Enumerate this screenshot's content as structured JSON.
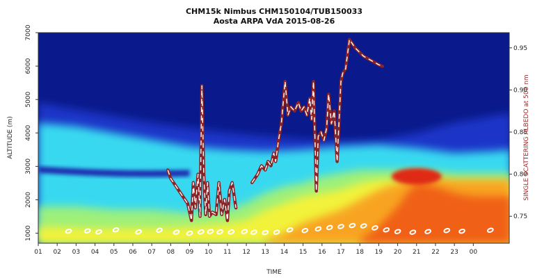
{
  "chart_data": {
    "type": "heatmap",
    "title": "CHM15k Nimbus CHM150104/TUB150033",
    "subtitle": "Aosta ARPA VdA 2015-08-26",
    "xlabel": "TIME",
    "ylabel": "ALTITUDE (m)",
    "y2label": "SINGLE SCATTERING ALBEDO at 500 nm",
    "x_ticks": [
      "01",
      "02",
      "03",
      "04",
      "05",
      "06",
      "07",
      "08",
      "09",
      "10",
      "11",
      "12",
      "13",
      "14",
      "15",
      "16",
      "17",
      "18",
      "19",
      "20",
      "21",
      "22",
      "23",
      "00"
    ],
    "y_ticks": [
      1000,
      2000,
      3000,
      4000,
      5000,
      6000,
      7000
    ],
    "y2_ticks": [
      0.75,
      0.8,
      0.85,
      0.9,
      0.95
    ],
    "xlim": [
      0.0,
      24.9
    ],
    "ylim": [
      700,
      7000
    ],
    "y2lim": [
      0.718,
      0.968
    ],
    "colors": {
      "background_high": "#0a1a8c",
      "low_signal": "#1b36c8",
      "aerosol_layer": "#38d9f0",
      "boundary_layer": "#f2f23a",
      "dense_aerosol": "#f06018",
      "albedo_line": "#8b2326",
      "albedo_dash": "#ffffff"
    },
    "series": [
      {
        "name": "SINGLE SCATTERING ALBEDO at 500 nm",
        "axis": "right",
        "segments": [
          [
            [
              6.85,
              0.805
            ],
            [
              7.0,
              0.795
            ],
            [
              7.3,
              0.785
            ],
            [
              7.6,
              0.775
            ],
            [
              7.9,
              0.765
            ],
            [
              8.1,
              0.745
            ],
            [
              8.2,
              0.79
            ],
            [
              8.3,
              0.76
            ],
            [
              8.45,
              0.8
            ],
            [
              8.55,
              0.75
            ],
            [
              8.65,
              0.905
            ],
            [
              8.75,
              0.8
            ],
            [
              8.85,
              0.752
            ],
            [
              8.95,
              0.79
            ],
            [
              9.05,
              0.75
            ],
            [
              9.2,
              0.755
            ],
            [
              9.4,
              0.752
            ],
            [
              9.55,
              0.79
            ],
            [
              9.7,
              0.752
            ],
            [
              9.85,
              0.77
            ],
            [
              10.0,
              0.745
            ],
            [
              10.1,
              0.78
            ],
            [
              10.25,
              0.79
            ],
            [
              10.45,
              0.76
            ]
          ],
          [
            [
              11.3,
              0.79
            ],
            [
              11.6,
              0.8
            ],
            [
              11.8,
              0.81
            ],
            [
              12.0,
              0.805
            ],
            [
              12.15,
              0.815
            ],
            [
              12.3,
              0.81
            ],
            [
              12.45,
              0.825
            ],
            [
              12.55,
              0.815
            ],
            [
              12.7,
              0.84
            ],
            [
              12.85,
              0.86
            ],
            [
              13.05,
              0.91
            ],
            [
              13.2,
              0.87
            ],
            [
              13.35,
              0.88
            ],
            [
              13.55,
              0.875
            ],
            [
              13.75,
              0.885
            ],
            [
              13.9,
              0.875
            ],
            [
              14.05,
              0.88
            ],
            [
              14.2,
              0.87
            ],
            [
              14.35,
              0.89
            ],
            [
              14.45,
              0.865
            ],
            [
              14.55,
              0.91
            ],
            [
              14.7,
              0.78
            ],
            [
              14.8,
              0.845
            ],
            [
              14.95,
              0.85
            ],
            [
              15.1,
              0.84
            ],
            [
              15.25,
              0.855
            ],
            [
              15.35,
              0.895
            ],
            [
              15.5,
              0.86
            ],
            [
              15.65,
              0.875
            ],
            [
              15.8,
              0.815
            ],
            [
              16.0,
              0.91
            ],
            [
              16.1,
              0.92
            ],
            [
              16.25,
              0.925
            ],
            [
              16.45,
              0.96
            ],
            [
              16.75,
              0.95
            ],
            [
              17.2,
              0.94
            ],
            [
              17.6,
              0.935
            ],
            [
              18.0,
              0.93
            ],
            [
              18.2,
              0.928
            ]
          ]
        ]
      }
    ],
    "vertical_markers_m": [
      [
        1.6,
        1060
      ],
      [
        2.6,
        1070
      ],
      [
        3.2,
        1040
      ],
      [
        4.1,
        1100
      ],
      [
        5.3,
        1040
      ],
      [
        6.4,
        1090
      ],
      [
        7.3,
        1030
      ],
      [
        8.0,
        1000
      ],
      [
        8.6,
        1040
      ],
      [
        9.1,
        1050
      ],
      [
        9.6,
        1040
      ],
      [
        10.2,
        1040
      ],
      [
        10.9,
        1050
      ],
      [
        11.4,
        1030
      ],
      [
        12.0,
        1020
      ],
      [
        12.6,
        1030
      ],
      [
        13.3,
        1100
      ],
      [
        14.1,
        1080
      ],
      [
        14.8,
        1130
      ],
      [
        15.4,
        1170
      ],
      [
        16.0,
        1200
      ],
      [
        16.6,
        1230
      ],
      [
        17.2,
        1220
      ],
      [
        17.8,
        1160
      ],
      [
        18.4,
        1100
      ],
      [
        19.0,
        1050
      ],
      [
        19.8,
        1030
      ],
      [
        20.6,
        1050
      ],
      [
        21.6,
        1080
      ],
      [
        22.4,
        1060
      ],
      [
        23.9,
        1090
      ]
    ]
  }
}
